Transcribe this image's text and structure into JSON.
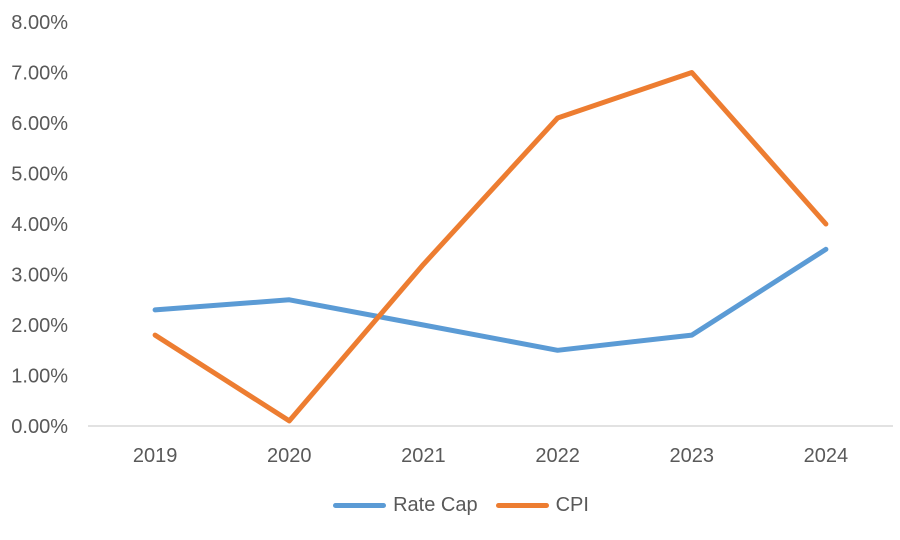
{
  "chart_data": {
    "type": "line",
    "title": "",
    "categories": [
      "2019",
      "2020",
      "2021",
      "2022",
      "2023",
      "2024"
    ],
    "series": [
      {
        "name": "Rate Cap",
        "color": "#5B9BD5",
        "values": [
          2.3,
          2.5,
          2.0,
          1.5,
          1.8,
          3.5
        ]
      },
      {
        "name": "CPI",
        "color": "#ED7D31",
        "values": [
          1.8,
          0.1,
          3.2,
          6.1,
          7.0,
          4.0
        ]
      }
    ],
    "y_axis": {
      "min": 0,
      "max": 8,
      "step": 1,
      "tick_labels": [
        "0.00%",
        "1.00%",
        "2.00%",
        "3.00%",
        "4.00%",
        "5.00%",
        "6.00%",
        "7.00%",
        "8.00%"
      ],
      "unit": "%"
    },
    "x_axis": {
      "tick_labels": [
        "2019",
        "2020",
        "2021",
        "2022",
        "2023",
        "2024"
      ]
    },
    "legend": {
      "position": "bottom",
      "entries": [
        "Rate Cap",
        "CPI"
      ]
    },
    "grid": false,
    "ylim": [
      0,
      8
    ]
  },
  "colors": {
    "axis_line": "#D9D9D9",
    "tick_text": "#595959",
    "background": "#FFFFFF",
    "series_rate_cap": "#5B9BD5",
    "series_cpi": "#ED7D31"
  }
}
